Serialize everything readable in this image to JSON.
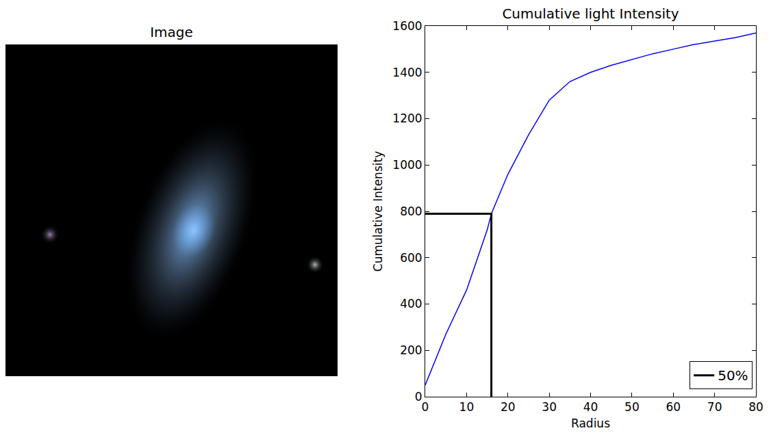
{
  "image_panel": {
    "title": "Image"
  },
  "chart_data": {
    "type": "line",
    "title": "Cumulative light Intensity",
    "x_label": "Radius",
    "y_label": "Cumulative Intensity",
    "series": [
      {
        "color": "#0000ff",
        "line_style": "solid",
        "x": [
          0,
          5,
          10,
          15,
          16,
          20,
          25,
          30,
          35,
          40,
          45,
          50,
          55,
          60,
          65,
          70,
          75,
          80
        ],
        "values": [
          50,
          270,
          460,
          720,
          790,
          960,
          1130,
          1280,
          1360,
          1400,
          1430,
          1455,
          1480,
          1500,
          1520,
          1535,
          1550,
          1570
        ]
      },
      {
        "name": "50%",
        "color": "#000000",
        "line_style": "solid",
        "x": [
          0,
          16,
          16
        ],
        "values": [
          790,
          790,
          0
        ]
      }
    ],
    "xlim": [
      0,
      80
    ],
    "xticks": [
      0,
      10,
      20,
      30,
      40,
      50,
      60,
      70,
      80
    ],
    "ylim": [
      0,
      1600
    ],
    "yticks": [
      0,
      200,
      400,
      600,
      800,
      1000,
      1200,
      1400,
      1600
    ],
    "grid": false,
    "legend": "lower right"
  }
}
